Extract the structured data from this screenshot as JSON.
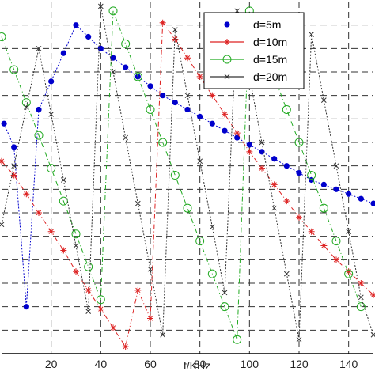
{
  "chart_data": {
    "type": "line",
    "xlabel": "f/KHz",
    "ylabel": "",
    "title": "",
    "xlim": [
      0,
      150
    ],
    "ylim": [
      0,
      15
    ],
    "xticks": [
      20,
      40,
      60,
      80,
      100,
      120,
      140
    ],
    "grid": true,
    "legend_position": "top-right",
    "series": [
      {
        "name": "d=5m",
        "color": "#0000cc",
        "marker": "dot",
        "line": "dotted",
        "x": [
          1,
          5,
          10,
          15,
          20,
          25,
          30,
          35,
          40,
          45,
          50,
          55,
          60,
          65,
          70,
          75,
          80,
          85,
          90,
          95,
          100,
          105,
          110,
          115,
          120,
          125,
          130,
          135,
          140,
          145,
          150
        ],
        "y": [
          9.8,
          8.8,
          2.0,
          10.4,
          11.6,
          12.8,
          14.0,
          13.5,
          13.0,
          12.6,
          12.2,
          11.8,
          11.4,
          11.0,
          10.7,
          10.4,
          10.1,
          9.8,
          9.5,
          9.2,
          8.9,
          8.6,
          8.3,
          8.0,
          7.7,
          7.4,
          7.2,
          7.0,
          6.8,
          6.6,
          6.4
        ]
      },
      {
        "name": "d=10m",
        "color": "#dd2222",
        "marker": "star",
        "line": "dashdot",
        "x": [
          0,
          5,
          10,
          15,
          20,
          25,
          30,
          35,
          40,
          45,
          50,
          55,
          60,
          65,
          70,
          75,
          80,
          85,
          90,
          95,
          100,
          105,
          110,
          115,
          120,
          125,
          130,
          135,
          140,
          145,
          150
        ],
        "y": [
          8.2,
          7.6,
          6.8,
          6.0,
          5.2,
          4.4,
          3.5,
          2.7,
          1.9,
          1.1,
          0.3,
          2.7,
          1.5,
          14.1,
          13.4,
          12.6,
          11.8,
          11.0,
          10.2,
          9.4,
          8.6,
          7.9,
          7.2,
          6.5,
          5.8,
          5.2,
          4.6,
          4.0,
          3.5,
          3.0,
          2.5
        ]
      },
      {
        "name": "d=15m",
        "color": "#22aa22",
        "marker": "circle",
        "line": "dashdot",
        "x": [
          0,
          5,
          10,
          15,
          20,
          25,
          30,
          35,
          40,
          45,
          50,
          55,
          60,
          65,
          70,
          75,
          80,
          85,
          90,
          95,
          100,
          105,
          110,
          115,
          120,
          125,
          130,
          135,
          140,
          145
        ],
        "y": [
          13.5,
          12.1,
          10.7,
          9.3,
          7.9,
          6.5,
          5.1,
          3.7,
          2.3,
          14.6,
          13.2,
          11.8,
          10.4,
          9.0,
          7.6,
          6.2,
          4.8,
          3.4,
          2.0,
          0.6,
          14.6,
          13.2,
          11.8,
          10.4,
          9.0,
          7.6,
          6.2,
          4.8,
          3.4,
          2.0
        ]
      },
      {
        "name": "d=20m",
        "color": "#333333",
        "marker": "x",
        "line": "dotted",
        "x": [
          0,
          5,
          10,
          15,
          20,
          25,
          30,
          35,
          40,
          45,
          50,
          55,
          60,
          65,
          70,
          75,
          80,
          85,
          90,
          95,
          100,
          105,
          110,
          115,
          120,
          125,
          130,
          135,
          140,
          145,
          150
        ],
        "y": [
          5.5,
          8.0,
          10.5,
          13.0,
          10.2,
          7.4,
          4.6,
          1.8,
          14.8,
          12.0,
          9.2,
          6.4,
          3.6,
          0.8,
          13.8,
          11.0,
          8.2,
          5.4,
          2.6,
          14.6,
          11.8,
          9.0,
          6.2,
          3.4,
          0.6,
          13.6,
          10.8,
          8.0,
          5.2,
          2.4,
          0.8
        ]
      }
    ]
  }
}
